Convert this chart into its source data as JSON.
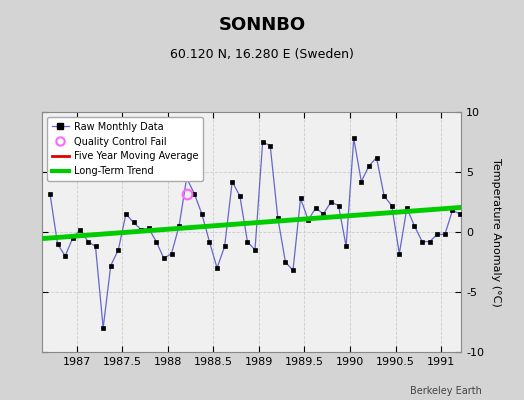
{
  "title": "SONNBO",
  "subtitle": "60.120 N, 16.280 E (Sweden)",
  "ylabel": "Temperature Anomaly (°C)",
  "watermark": "Berkeley Earth",
  "xlim": [
    1986.62,
    1991.22
  ],
  "ylim": [
    -10,
    10
  ],
  "xticks": [
    1987,
    1987.5,
    1988,
    1988.5,
    1989,
    1989.5,
    1990,
    1990.5,
    1991
  ],
  "yticks": [
    -10,
    -5,
    0,
    5,
    10
  ],
  "bg_color": "#d4d4d4",
  "plot_bg_color": "#f0f0f0",
  "raw_data_x": [
    1986.708,
    1986.792,
    1986.875,
    1986.958,
    1987.042,
    1987.125,
    1987.208,
    1987.292,
    1987.375,
    1987.458,
    1987.542,
    1987.625,
    1987.708,
    1987.792,
    1987.875,
    1987.958,
    1988.042,
    1988.125,
    1988.208,
    1988.292,
    1988.375,
    1988.458,
    1988.542,
    1988.625,
    1988.708,
    1988.792,
    1988.875,
    1988.958,
    1989.042,
    1989.125,
    1989.208,
    1989.292,
    1989.375,
    1989.458,
    1989.542,
    1989.625,
    1989.708,
    1989.792,
    1989.875,
    1989.958,
    1990.042,
    1990.125,
    1990.208,
    1990.292,
    1990.375,
    1990.458,
    1990.542,
    1990.625,
    1990.708,
    1990.792,
    1990.875,
    1990.958,
    1991.042,
    1991.125,
    1991.208
  ],
  "raw_data_y": [
    3.2,
    -1.0,
    -2.0,
    -0.5,
    0.2,
    -0.8,
    -1.2,
    -8.0,
    -2.8,
    -1.5,
    1.5,
    0.8,
    0.2,
    0.3,
    -0.8,
    -2.2,
    -1.8,
    0.5,
    4.5,
    3.2,
    1.5,
    -0.8,
    -3.0,
    -1.2,
    4.2,
    3.0,
    -0.8,
    -1.5,
    7.5,
    7.2,
    1.2,
    -2.5,
    -3.2,
    2.8,
    1.0,
    2.0,
    1.5,
    2.5,
    2.2,
    -1.2,
    7.8,
    4.2,
    5.5,
    6.2,
    3.0,
    2.2,
    -1.8,
    2.0,
    0.5,
    -0.8,
    -0.8,
    -0.2,
    -0.2,
    1.8,
    1.5
  ],
  "qc_fail_x": [
    1988.208
  ],
  "qc_fail_y": [
    3.2
  ],
  "trend_x": [
    1986.62,
    1991.22
  ],
  "trend_y": [
    -0.55,
    2.05
  ],
  "line_color": "#6666cc",
  "marker_color": "#000000",
  "qc_color": "#ff66ff",
  "trend_color": "#00cc00",
  "moving_avg_color": "#dd0000",
  "grid_color": "#cccccc",
  "title_fontsize": 13,
  "subtitle_fontsize": 9,
  "tick_fontsize": 8,
  "ylabel_fontsize": 8
}
